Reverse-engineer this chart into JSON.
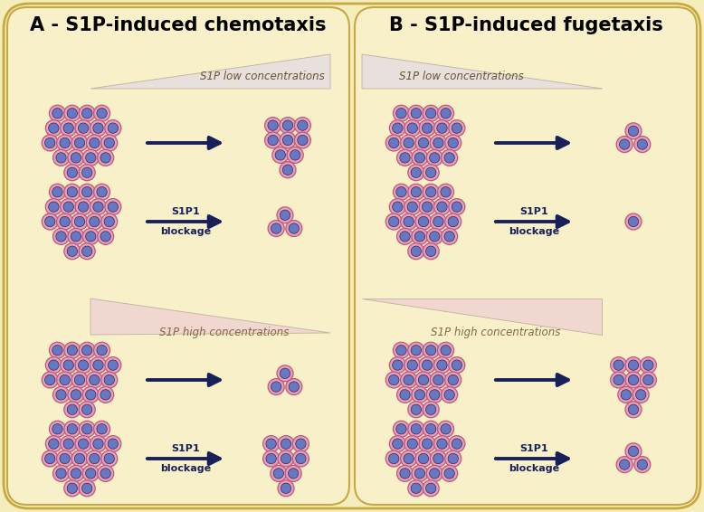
{
  "bg_color": "#f5eebc",
  "panel_color": "#f5eebc",
  "panel_A_title": "A - S1P-induced chemotaxis",
  "panel_B_title": "B - S1P-induced fugetaxis",
  "label_low": "S1P low concentrations",
  "label_high": "S1P high concentrations",
  "cell_outer_color": "#e8a0b8",
  "cell_inner_color": "#6878c0",
  "cell_outer_border": "#c05878",
  "cell_inner_border": "#282868",
  "arrow_color": "#18205a",
  "tri_low_A_color": "#e8e0dc",
  "tri_high_A_color": "#f0d8d0",
  "tri_low_B_color": "#e8e0dc",
  "tri_high_B_color": "#f0d8d0",
  "title_fontsize": 15,
  "conc_fontsize": 8.5,
  "blockage_fontsize": 8
}
